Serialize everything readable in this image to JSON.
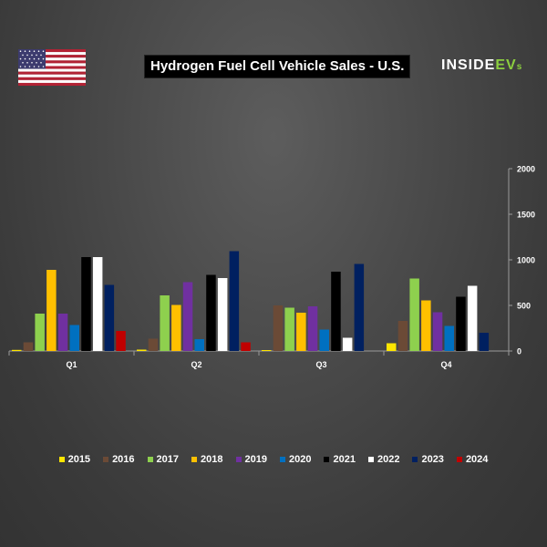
{
  "header": {
    "title": "Hydrogen Fuel Cell Vehicle Sales - U.S.",
    "logo_main": "INSIDE",
    "logo_ev": "EV",
    "logo_s": "s",
    "flag_icon": "us-flag-icon"
  },
  "chart_data": {
    "type": "bar",
    "title": "Hydrogen Fuel Cell Vehicle Sales - U.S.",
    "xlabel": "",
    "ylabel": "",
    "categories": [
      "Q1",
      "Q2",
      "Q3",
      "Q4"
    ],
    "ylim": [
      0,
      2000
    ],
    "yticks": [
      0,
      500,
      1000,
      1500,
      2000
    ],
    "y_axis_side": "right",
    "grid": false,
    "legend_position": "bottom",
    "series": [
      {
        "name": "2015",
        "color": "#ffe600",
        "values": [
          12,
          15,
          10,
          85
        ]
      },
      {
        "name": "2016",
        "color": "#6b4a36",
        "values": [
          95,
          135,
          500,
          330
        ]
      },
      {
        "name": "2017",
        "color": "#8ed04e",
        "values": [
          410,
          610,
          475,
          795
        ]
      },
      {
        "name": "2018",
        "color": "#ffc000",
        "values": [
          890,
          505,
          420,
          555
        ]
      },
      {
        "name": "2019",
        "color": "#7030a0",
        "values": [
          410,
          755,
          490,
          425
        ]
      },
      {
        "name": "2020",
        "color": "#0070c0",
        "values": [
          285,
          130,
          235,
          275
        ]
      },
      {
        "name": "2021",
        "color": "#000000",
        "values": [
          1030,
          835,
          870,
          595
        ]
      },
      {
        "name": "2022",
        "color": "#ffffff",
        "values": [
          1030,
          800,
          145,
          715
        ]
      },
      {
        "name": "2023",
        "color": "#002060",
        "values": [
          725,
          1095,
          955,
          200
        ]
      },
      {
        "name": "2024",
        "color": "#c00000",
        "values": [
          220,
          95,
          null,
          null
        ]
      }
    ]
  }
}
